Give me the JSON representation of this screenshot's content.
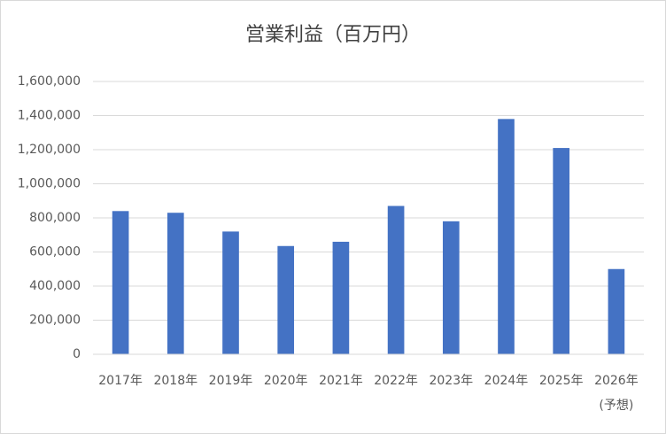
{
  "chart_data": {
    "type": "bar",
    "title": "営業利益（百万円）",
    "categories": [
      "2017年",
      "2018年",
      "2019年",
      "2020年",
      "2021年",
      "2022年",
      "2023年",
      "2024年",
      "2025年",
      "2026年\n(予想)"
    ],
    "values": [
      840000,
      830000,
      720000,
      635000,
      660000,
      870000,
      780000,
      1380000,
      1210000,
      500000
    ],
    "color": "#4472c4",
    "ylim": [
      0,
      1600000
    ],
    "yticks": [
      0,
      {
        "value": 200000,
        "label": "200,000"
      },
      {
        "value": 400000,
        "label": "400,000"
      },
      {
        "value": 600000,
        "label": "600,000"
      },
      {
        "value": 800000,
        "label": "800,000"
      },
      {
        "value": 1000000,
        "label": "1,000,000"
      },
      {
        "value": 1200000,
        "label": "1,200,000"
      },
      {
        "value": 1400000,
        "label": "1,400,000"
      },
      {
        "value": 1600000,
        "label": "1,600,000"
      }
    ],
    "grid": true
  }
}
